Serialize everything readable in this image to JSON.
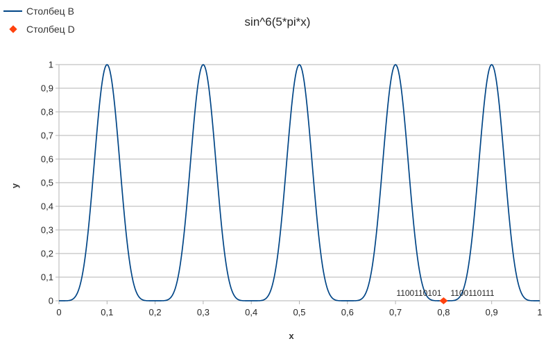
{
  "legend": {
    "items": [
      {
        "label": "Столбец B",
        "swatch": "line",
        "color": "#004586"
      },
      {
        "label": "Столбец D",
        "swatch": "diamond",
        "color": "#ff420e"
      }
    ]
  },
  "chart_data": {
    "type": "line",
    "title": "sin^6(5*pi*x)",
    "xlabel": "x",
    "ylabel": "y",
    "xlim": [
      0,
      1
    ],
    "ylim": [
      0,
      1
    ],
    "x_tick_values": [
      0,
      0.1,
      0.2,
      0.3,
      0.4,
      0.5,
      0.6,
      0.7,
      0.8,
      0.9,
      1
    ],
    "x_tick_labels": [
      "0",
      "0,1",
      "0,2",
      "0,3",
      "0,4",
      "0,5",
      "0,6",
      "0,7",
      "0,8",
      "0,9",
      "1"
    ],
    "y_tick_values": [
      0,
      0.1,
      0.2,
      0.3,
      0.4,
      0.5,
      0.6,
      0.7,
      0.8,
      0.9,
      1
    ],
    "y_tick_labels": [
      "0",
      "0,1",
      "0,2",
      "0,3",
      "0,4",
      "0,5",
      "0,6",
      "0,7",
      "0,8",
      "0,9",
      "1"
    ],
    "grid": "horizontal",
    "grid_color": "#b3b3b3",
    "axis_color": "#b3b3b3",
    "text_color": "#262626",
    "legend_position": "top-left",
    "series": [
      {
        "name": "Столбец B",
        "type": "line",
        "color": "#004586",
        "function": {
          "expr": "sin(k*pi*x)^p",
          "k": 5,
          "p": 6
        },
        "x_range": [
          0,
          1
        ],
        "samples": 500,
        "peaks_at_x": [
          0.1,
          0.3,
          0.5,
          0.7,
          0.9
        ],
        "zeros_at_x": [
          0,
          0.2,
          0.4,
          0.6,
          0.8,
          1
        ]
      },
      {
        "name": "Столбец D",
        "type": "scatter",
        "color": "#ff420e",
        "marker": "diamond",
        "points": [
          {
            "x": 0.8,
            "y": 0,
            "label_left": "1100110101",
            "label_right": "1100110111"
          }
        ]
      }
    ]
  }
}
